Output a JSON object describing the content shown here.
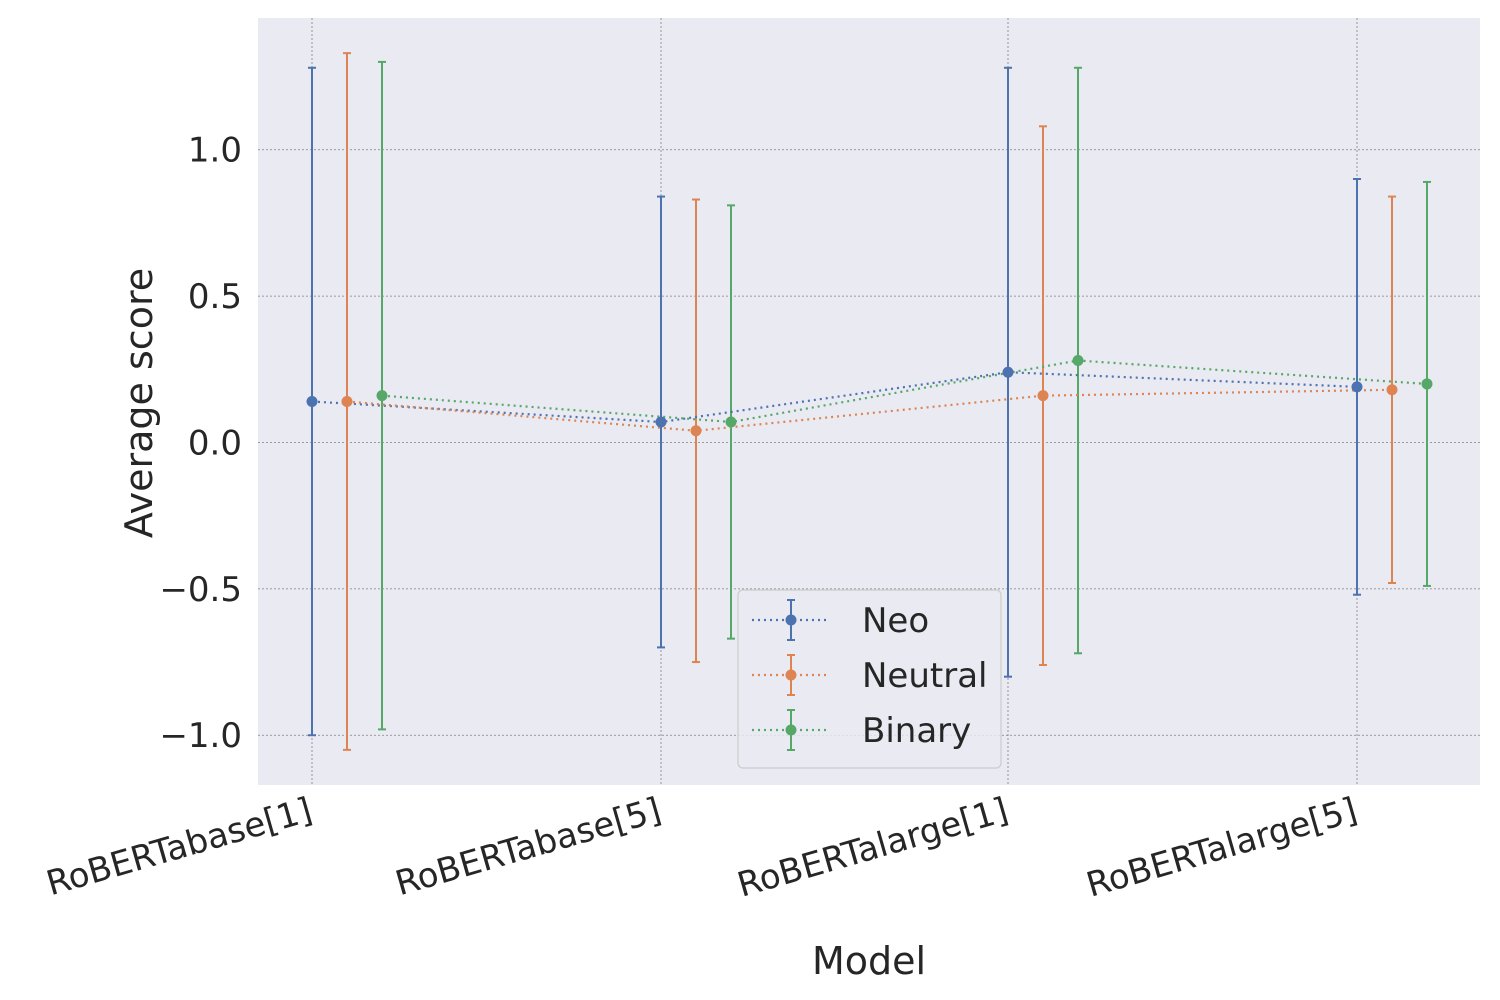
{
  "chart_data": {
    "type": "line",
    "title": "",
    "xlabel": "Model",
    "ylabel": "Average score",
    "categories": [
      "RoBERTabase[1]",
      "RoBERTabase[5]",
      "RoBERTalarge[1]",
      "RoBERTalarge[5]"
    ],
    "ylim": [
      -1.17,
      1.45
    ],
    "yticks": [
      -1.0,
      -0.5,
      0.0,
      0.5,
      1.0
    ],
    "ytick_labels": [
      "−1.0",
      "−0.5",
      "0.0",
      "0.5",
      "1.0"
    ],
    "grid": true,
    "legend_position": "lower-center",
    "series": [
      {
        "name": "Neo",
        "color": "#4c72b0",
        "values": [
          0.14,
          0.07,
          0.24,
          0.19
        ],
        "error_low": [
          -1.0,
          -0.7,
          -0.8,
          -0.52
        ],
        "error_high": [
          1.28,
          0.84,
          1.28,
          0.9
        ]
      },
      {
        "name": "Neutral",
        "color": "#dd8452",
        "values": [
          0.14,
          0.04,
          0.16,
          0.18
        ],
        "error_low": [
          -1.05,
          -0.75,
          -0.76,
          -0.48
        ],
        "error_high": [
          1.33,
          0.83,
          1.08,
          0.84
        ]
      },
      {
        "name": "Binary",
        "color": "#55a868",
        "values": [
          0.16,
          0.07,
          0.28,
          0.2
        ],
        "error_low": [
          -0.98,
          -0.67,
          -0.72,
          -0.49
        ],
        "error_high": [
          1.3,
          0.81,
          1.28,
          0.89
        ]
      }
    ]
  }
}
